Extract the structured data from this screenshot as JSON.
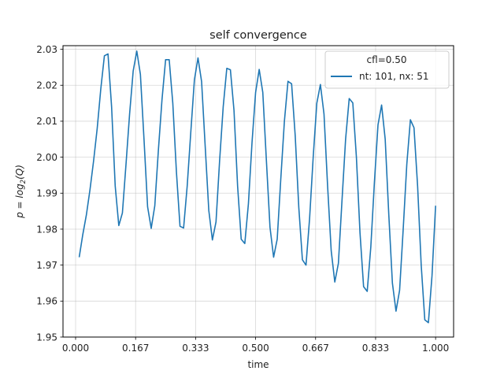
{
  "chart_data": {
    "type": "line",
    "title": "self convergence",
    "xlabel": "time",
    "ylabel_prefix": "p = log",
    "ylabel_sub": "2",
    "ylabel_suffix": "(Q)",
    "xlim": [
      -0.035,
      1.05
    ],
    "ylim": [
      1.95,
      2.031
    ],
    "xticks": [
      0.0,
      0.16667,
      0.33333,
      0.5,
      0.66667,
      0.83333,
      1.0
    ],
    "xtick_labels": [
      "0.000",
      "0.167",
      "0.333",
      "0.500",
      "0.667",
      "0.833",
      "1.000"
    ],
    "yticks": [
      1.95,
      1.96,
      1.97,
      1.98,
      1.99,
      2.0,
      2.01,
      2.02,
      2.03
    ],
    "ytick_labels": [
      "1.95",
      "1.96",
      "1.97",
      "1.98",
      "1.99",
      "2.00",
      "2.01",
      "2.02",
      "2.03"
    ],
    "grid": true,
    "legend": {
      "title": "cfl=0.50",
      "placement": "upper right"
    },
    "series": [
      {
        "name": "nt: 101, nx: 51",
        "color": "#1f77b4",
        "x": [
          0.01,
          0.02,
          0.03,
          0.04,
          0.05,
          0.06,
          0.07,
          0.08,
          0.09,
          0.1,
          0.11,
          0.12,
          0.13,
          0.14,
          0.15,
          0.16,
          0.17,
          0.18,
          0.19,
          0.2,
          0.21,
          0.22,
          0.23,
          0.24,
          0.25,
          0.26,
          0.27,
          0.28,
          0.29,
          0.3,
          0.31,
          0.32,
          0.33,
          0.34,
          0.35,
          0.36,
          0.37,
          0.38,
          0.39,
          0.4,
          0.41,
          0.42,
          0.43,
          0.44,
          0.45,
          0.46,
          0.47,
          0.48,
          0.49,
          0.5,
          0.51,
          0.52,
          0.53,
          0.54,
          0.55,
          0.56,
          0.57,
          0.58,
          0.59,
          0.6,
          0.61,
          0.62,
          0.63,
          0.64,
          0.65,
          0.66,
          0.67,
          0.68,
          0.69,
          0.7,
          0.71,
          0.72,
          0.73,
          0.74,
          0.75,
          0.76,
          0.77,
          0.78,
          0.79,
          0.8,
          0.81,
          0.82,
          0.83,
          0.84,
          0.85,
          0.86,
          0.87,
          0.88,
          0.89,
          0.9,
          0.91,
          0.92,
          0.93,
          0.94,
          0.95,
          0.96,
          0.97,
          0.98,
          0.99,
          1.0
        ],
        "values": [
          1.9722,
          1.9785,
          1.984,
          1.991,
          1.999,
          2.008,
          2.019,
          2.0282,
          2.0287,
          2.014,
          1.992,
          1.981,
          1.9845,
          1.998,
          2.012,
          2.024,
          2.0295,
          2.023,
          2.005,
          1.9862,
          1.9802,
          1.9865,
          2.002,
          2.016,
          2.0271,
          2.0271,
          2.015,
          1.996,
          1.9808,
          1.9803,
          1.992,
          2.007,
          2.0215,
          2.0276,
          2.021,
          2.003,
          1.9852,
          1.977,
          1.982,
          1.999,
          2.014,
          2.0247,
          2.0243,
          2.013,
          1.992,
          1.9772,
          1.976,
          1.987,
          2.004,
          2.018,
          2.0244,
          2.018,
          1.999,
          1.9805,
          1.9722,
          1.9772,
          1.994,
          2.01,
          2.0211,
          2.0204,
          2.006,
          1.986,
          1.9715,
          1.97,
          1.983,
          2.0,
          2.015,
          2.0202,
          2.012,
          1.992,
          1.974,
          1.9653,
          1.9705,
          1.988,
          2.005,
          2.0163,
          2.0151,
          2.0,
          1.979,
          1.964,
          1.9627,
          1.975,
          1.993,
          2.009,
          2.0145,
          2.005,
          1.984,
          1.965,
          1.9572,
          1.963,
          1.98,
          1.998,
          2.0104,
          2.0082,
          1.992,
          1.97,
          1.9548,
          1.954,
          1.967,
          1.9865
        ]
      }
    ]
  }
}
